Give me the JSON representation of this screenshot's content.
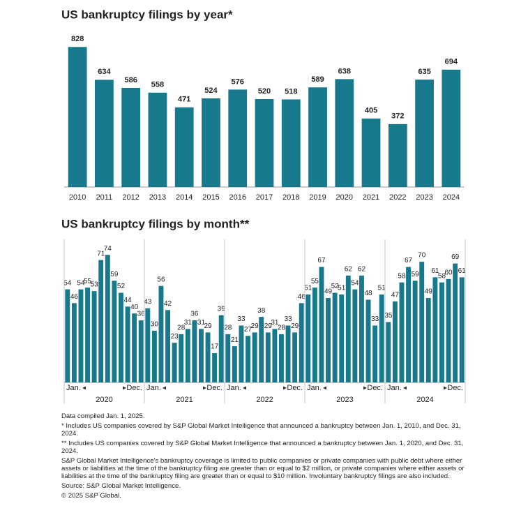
{
  "chart_data": [
    {
      "type": "bar",
      "title": "US bankruptcy filings by year*",
      "categories": [
        "2010",
        "2011",
        "2012",
        "2013",
        "2014",
        "2015",
        "2016",
        "2017",
        "2018",
        "2019",
        "2020",
        "2021",
        "2022",
        "2023",
        "2024"
      ],
      "values": [
        828,
        634,
        586,
        558,
        471,
        524,
        576,
        520,
        518,
        589,
        638,
        405,
        372,
        635,
        694
      ],
      "color": "#17798b",
      "ylim": [
        0,
        920
      ]
    },
    {
      "type": "bar",
      "title": "US bankruptcy filings by month**",
      "categories": [
        "Jan.",
        null,
        null,
        null,
        null,
        null,
        null,
        null,
        null,
        null,
        null,
        "Dec.",
        "Jan.",
        null,
        null,
        null,
        null,
        null,
        null,
        null,
        null,
        null,
        null,
        "Dec.",
        "Jan.",
        null,
        null,
        null,
        null,
        null,
        null,
        null,
        null,
        null,
        null,
        "Dec.",
        "Jan.",
        null,
        null,
        null,
        null,
        null,
        null,
        null,
        null,
        null,
        null,
        "Dec.",
        "Jan.",
        null,
        null,
        null,
        null,
        null,
        null,
        null,
        null,
        null,
        null,
        "Dec."
      ],
      "group_labels": [
        "2020",
        "2021",
        "2022",
        "2023",
        "2024"
      ],
      "values": [
        54,
        46,
        54,
        55,
        53,
        71,
        74,
        59,
        52,
        44,
        40,
        36,
        43,
        30,
        56,
        42,
        23,
        28,
        31,
        36,
        31,
        29,
        17,
        39,
        28,
        21,
        33,
        27,
        29,
        38,
        29,
        31,
        28,
        33,
        29,
        46,
        51,
        55,
        67,
        49,
        52,
        51,
        62,
        54,
        62,
        48,
        33,
        51,
        35,
        47,
        58,
        67,
        59,
        70,
        49,
        61,
        58,
        60,
        69,
        61
      ],
      "color": "#17798b",
      "ylim": [
        0,
        83
      ]
    }
  ],
  "notes": [
    "Data compiled Jan. 1, 2025.",
    "* Includes US companies covered by S&P Global Market Intelligence that announced a bankruptcy between Jan. 1, 2010, and Dec. 31, 2024.",
    "** Includes US companies covered by S&P Global Market Intelligence that announced a bankruptcy between Jan. 1, 2020, and Dec. 31, 2024.",
    "S&P Global Market Intelligence's bankruptcy coverage is limited to public companies or private companies with public debt where either assets or liabilities at the time of the bankruptcy filing are greater than or equal to $2 million, or private companies where either assets or liabilities at the time of the bankruptcy filing are greater than or equal to $10 million. Involuntary bankruptcy filings are also included.",
    "Source: S&P Global Market Intelligence.",
    "© 2025 S&P Global."
  ]
}
